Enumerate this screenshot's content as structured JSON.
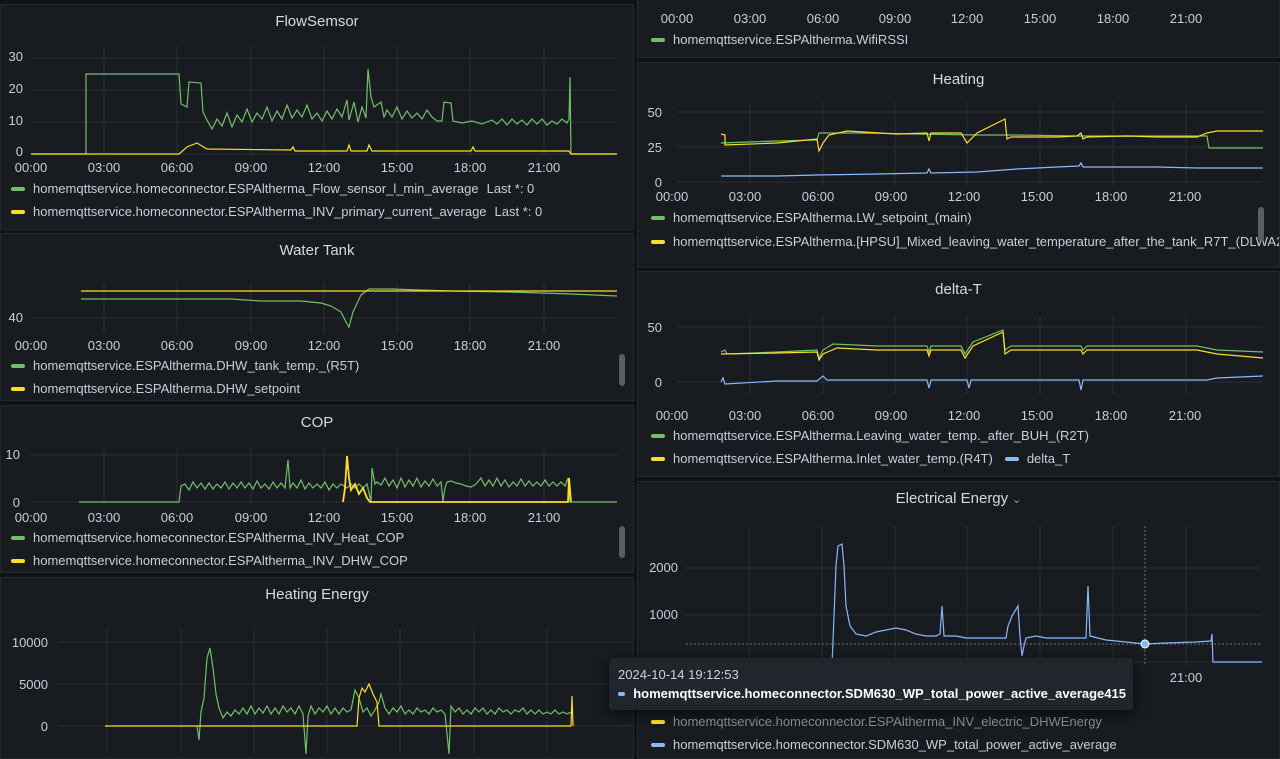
{
  "panels": {
    "flow": {
      "title": "FlowSemsor",
      "yticks": [
        "30",
        "20",
        "10",
        "0"
      ],
      "xticks": [
        "00:00",
        "03:00",
        "06:00",
        "09:00",
        "12:00",
        "15:00",
        "18:00",
        "21:00"
      ],
      "legend": [
        {
          "name": "homemqttservice.homeconnector.ESPAltherma_Flow_sensor_l_min_average",
          "last": "Last *: 0",
          "color": "#73bf69"
        },
        {
          "name": "homemqttservice.homeconnector.ESPAltherma_INV_primary_current_average",
          "last": "Last *: 0",
          "color": "#fade2a"
        }
      ]
    },
    "tank": {
      "title": "Water Tank",
      "yticks": [
        "40"
      ],
      "xticks": [
        "00:00",
        "03:00",
        "06:00",
        "09:00",
        "12:00",
        "15:00",
        "18:00",
        "21:00"
      ],
      "legend": [
        {
          "name": "homemqttservice.ESPAltherma.DHW_tank_temp._(R5T)",
          "color": "#73bf69"
        },
        {
          "name": "homemqttservice.ESPAltherma.DHW_setpoint",
          "color": "#fade2a"
        }
      ]
    },
    "cop": {
      "title": "COP",
      "yticks": [
        "10",
        "0"
      ],
      "xticks": [
        "00:00",
        "03:00",
        "06:00",
        "09:00",
        "12:00",
        "15:00",
        "18:00",
        "21:00"
      ],
      "legend": [
        {
          "name": "homemqttservice.homeconnector.ESPAltherma_INV_Heat_COP",
          "color": "#73bf69"
        },
        {
          "name": "homemqttservice.homeconnector.ESPAltherma_INV_DHW_COP",
          "color": "#fade2a"
        }
      ]
    },
    "henergy": {
      "title": "Heating Energy",
      "yticks": [
        "10000",
        "5000",
        "0"
      ]
    },
    "wifi": {
      "xticks": [
        "00:00",
        "03:00",
        "06:00",
        "09:00",
        "12:00",
        "15:00",
        "18:00",
        "21:00"
      ],
      "legend": [
        {
          "name": "homemqttservice.ESPAltherma.WifiRSSI",
          "color": "#73bf69"
        }
      ]
    },
    "heating": {
      "title": "Heating",
      "yticks": [
        "50",
        "25",
        "0"
      ],
      "xticks": [
        "00:00",
        "03:00",
        "06:00",
        "09:00",
        "12:00",
        "15:00",
        "18:00",
        "21:00"
      ],
      "legend": [
        {
          "name": "homemqttservice.ESPAltherma.LW_setpoint_(main)",
          "color": "#73bf69"
        },
        {
          "name": "homemqttservice.ESPAltherma.[HPSU]_Mixed_leaving_water_temperature_after_the_tank_R7T_(DLWA2",
          "color": "#fade2a"
        }
      ]
    },
    "delta": {
      "title": "delta-T",
      "yticks": [
        "50",
        "0"
      ],
      "xticks": [
        "00:00",
        "03:00",
        "06:00",
        "09:00",
        "12:00",
        "15:00",
        "18:00",
        "21:00"
      ],
      "legend": [
        {
          "name": "homemqttservice.ESPAltherma.Leaving_water_temp._after_BUH_(R2T)",
          "color": "#73bf69"
        },
        {
          "name": "homemqttservice.ESPAltherma.Inlet_water_temp.(R4T)",
          "color": "#fade2a"
        },
        {
          "name": "delta_T",
          "color": "#8ab8ff"
        }
      ]
    },
    "eenergy": {
      "title": "Electrical Energy",
      "yticks": [
        "2000",
        "1000"
      ],
      "xtick_visible": "21:00",
      "legend": [
        {
          "name": "homemqttservice.homeconnector.ESPAltherma_INV_electric_DHWEnergy",
          "color": "#fade2a"
        },
        {
          "name": "homemqttservice.homeconnector.SDM630_WP_total_power_active_average",
          "color": "#8ab8ff"
        }
      ],
      "tooltip": {
        "time": "2024-10-14 19:12:53",
        "series": "homemqttservice.homeconnector.SDM630_WP_total_power_active_average",
        "value": "415",
        "color": "#8ab8ff"
      }
    }
  },
  "colors": {
    "green": "#73bf69",
    "yellow": "#fade2a",
    "blue": "#8ab8ff"
  },
  "icons": {
    "title_menu": "chevron-down-icon"
  }
}
